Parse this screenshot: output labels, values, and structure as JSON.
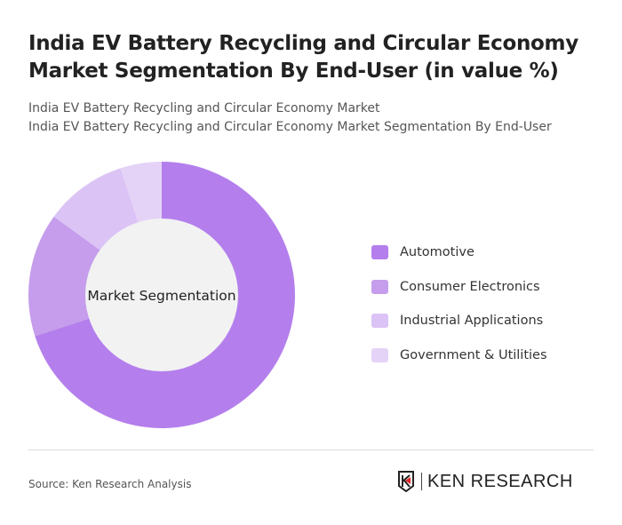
{
  "title": "India EV Battery Recycling and Circular Economy Market Segmentation By End-User (in value %)",
  "subtitle_1": "India EV Battery Recycling and Circular Economy Market",
  "subtitle_2": "India EV Battery Recycling and Circular Economy Market Segmentation By End-User",
  "source": "Source: Ken Research Analysis",
  "logo_text": "KEN RESEARCH",
  "chart_data": {
    "type": "pie",
    "variant": "donut",
    "center_label": "Market Segmentation",
    "categories": [
      "Automotive",
      "Consumer Electronics",
      "Industrial Applications",
      "Government & Utilities"
    ],
    "values": [
      70,
      15,
      10,
      5
    ],
    "colors": [
      "#b47fec",
      "#c59dec",
      "#dbc3f5",
      "#e5d3f7"
    ],
    "center_color": "#f2f2f2",
    "legend_position": "right"
  }
}
